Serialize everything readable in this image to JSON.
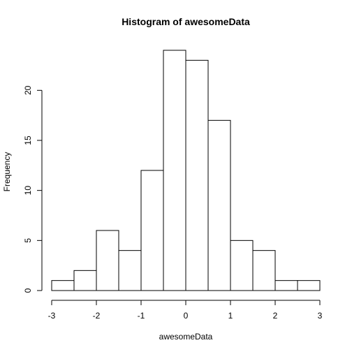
{
  "chart_data": {
    "type": "bar",
    "title": "Histogram of awesomeData",
    "xlabel": "awesomeData",
    "ylabel": "Frequency",
    "bins": [
      {
        "start": -3.0,
        "end": -2.5,
        "count": 1
      },
      {
        "start": -2.5,
        "end": -2.0,
        "count": 2
      },
      {
        "start": -2.0,
        "end": -1.5,
        "count": 6
      },
      {
        "start": -1.5,
        "end": -1.0,
        "count": 4
      },
      {
        "start": -1.0,
        "end": -0.5,
        "count": 12
      },
      {
        "start": -0.5,
        "end": 0.0,
        "count": 24
      },
      {
        "start": 0.0,
        "end": 0.5,
        "count": 23
      },
      {
        "start": 0.5,
        "end": 1.0,
        "count": 17
      },
      {
        "start": 1.0,
        "end": 1.5,
        "count": 5
      },
      {
        "start": 1.5,
        "end": 2.0,
        "count": 4
      },
      {
        "start": 2.0,
        "end": 2.5,
        "count": 1
      },
      {
        "start": 2.5,
        "end": 3.0,
        "count": 1
      }
    ],
    "xlim": [
      -3,
      3
    ],
    "ylim": [
      0,
      24
    ],
    "x_ticks": [
      {
        "value": -3,
        "label": "-3"
      },
      {
        "value": -2,
        "label": "-2"
      },
      {
        "value": -1,
        "label": "-1"
      },
      {
        "value": 0,
        "label": "0"
      },
      {
        "value": 1,
        "label": "1"
      },
      {
        "value": 2,
        "label": "2"
      },
      {
        "value": 3,
        "label": "3"
      }
    ],
    "y_ticks": [
      {
        "value": 0,
        "label": "0"
      },
      {
        "value": 5,
        "label": "5"
      },
      {
        "value": 10,
        "label": "10"
      },
      {
        "value": 15,
        "label": "15"
      },
      {
        "value": 20,
        "label": "20"
      }
    ],
    "grid": false,
    "legend": "none",
    "bar_fill": "#ffffff",
    "bar_stroke": "#000000"
  }
}
